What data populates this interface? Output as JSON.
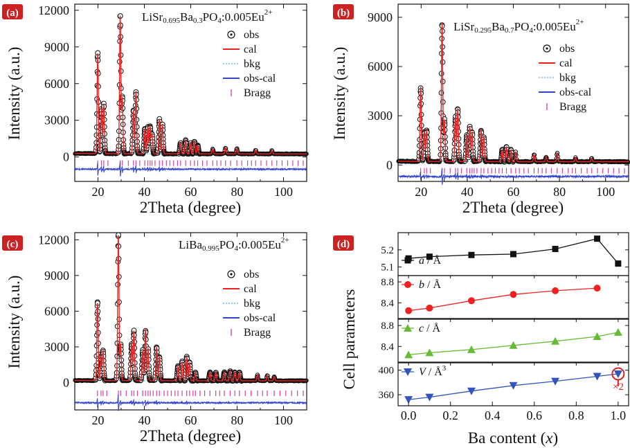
{
  "colors": {
    "obs": "#111111",
    "cal": "#ee2222",
    "bkg": "#55aaee",
    "diff": "#3344cc",
    "bragg": "#cc44aa",
    "badge": "#cc2222",
    "series_a": "#111111",
    "series_b": "#ee2222",
    "series_c": "#66bb33",
    "series_V": "#3355bb",
    "marker_highlight": "#dd2222"
  },
  "chart_data": [
    {
      "panel": "(a)",
      "type": "line",
      "formula": [
        {
          "t": "LiSr",
          "s": "base"
        },
        {
          "t": "0.695",
          "s": "sub"
        },
        {
          "t": "Ba",
          "s": "base"
        },
        {
          "t": "0.3",
          "s": "sub"
        },
        {
          "t": "PO",
          "s": "base"
        },
        {
          "t": "4",
          "s": "sub"
        },
        {
          "t": ":0.005Eu",
          "s": "base"
        },
        {
          "t": "2+",
          "s": "sup"
        }
      ],
      "xlabel": "2Theta (degree)",
      "ylabel": "Intensity (a.u.)",
      "xlim": [
        10,
        110
      ],
      "ylim": [
        -2000,
        12500
      ],
      "xticks": [
        "20",
        "40",
        "60",
        "80",
        "100"
      ],
      "yticks": [
        "0",
        "3000",
        "6000",
        "9000",
        "12000"
      ],
      "legend": [
        "obs",
        "cal",
        "bkg",
        "obs-cal",
        "Bragg"
      ],
      "background": 250,
      "diff_offset": -1000,
      "bragg_level": -500,
      "peaks": [
        [
          19.9,
          8200
        ],
        [
          21.5,
          3600
        ],
        [
          22.5,
          4000
        ],
        [
          29.6,
          11200
        ],
        [
          30.5,
          4500
        ],
        [
          35.3,
          3500
        ],
        [
          36.4,
          5100
        ],
        [
          40.2,
          2000
        ],
        [
          41.5,
          2200
        ],
        [
          42.5,
          2200
        ],
        [
          43.3,
          1600
        ],
        [
          46.5,
          2800
        ],
        [
          47.8,
          2400
        ],
        [
          55.6,
          900
        ],
        [
          57.8,
          1100
        ],
        [
          59.9,
          900
        ],
        [
          61.6,
          1000
        ],
        [
          63.0,
          700
        ],
        [
          69.5,
          400
        ],
        [
          75.0,
          500
        ],
        [
          79.9,
          450
        ],
        [
          88.0,
          300
        ],
        [
          95.0,
          250
        ]
      ],
      "bragg_positions": [
        19.9,
        21.5,
        22.5,
        24.3,
        29.6,
        30.5,
        33.1,
        35.3,
        36.4,
        38.0,
        40.2,
        41.5,
        42.5,
        43.3,
        44.6,
        46.5,
        47.8,
        49.5,
        51.0,
        52.6,
        54.3,
        55.6,
        57.8,
        59.9,
        61.6,
        63.0,
        65.1,
        67.0,
        69.5,
        71.3,
        73.0,
        75.0,
        77.2,
        79.9,
        82.0,
        84.5,
        86.2,
        88.0,
        90.3,
        92.7,
        95.0,
        97.1,
        99.4,
        101.8,
        104.0,
        106.3,
        108.5
      ]
    },
    {
      "panel": "(b)",
      "type": "line",
      "formula": [
        {
          "t": "LiSr",
          "s": "base"
        },
        {
          "t": "0.295",
          "s": "sub"
        },
        {
          "t": "Ba",
          "s": "base"
        },
        {
          "t": "0.7",
          "s": "sub"
        },
        {
          "t": "PO",
          "s": "base"
        },
        {
          "t": "4",
          "s": "sub"
        },
        {
          "t": ":0.005Eu",
          "s": "base"
        },
        {
          "t": "2+",
          "s": "sup"
        }
      ],
      "xlabel": "2Theta (degree)",
      "ylabel": "Intensity (a.u.)",
      "xlim": [
        10,
        110
      ],
      "ylim": [
        -1000,
        9800
      ],
      "xticks": [
        "20",
        "40",
        "60",
        "80",
        "100"
      ],
      "yticks": [
        "0",
        "3000",
        "6000",
        "9000"
      ],
      "legend": [
        "obs",
        "cal",
        "bkg",
        "obs-cal",
        "Bragg"
      ],
      "background": 200,
      "diff_offset": -700,
      "bragg_level": -350,
      "peaks": [
        [
          19.8,
          4500
        ],
        [
          21.4,
          1800
        ],
        [
          22.4,
          1900
        ],
        [
          29.1,
          8400
        ],
        [
          30.1,
          2500
        ],
        [
          34.9,
          2700
        ],
        [
          35.9,
          3200
        ],
        [
          39.8,
          1600
        ],
        [
          41.1,
          2100
        ],
        [
          42.1,
          1800
        ],
        [
          46.0,
          1900
        ],
        [
          47.2,
          1500
        ],
        [
          55.2,
          700
        ],
        [
          57.0,
          900
        ],
        [
          59.0,
          700
        ],
        [
          61.0,
          600
        ],
        [
          69.0,
          450
        ],
        [
          74.2,
          300
        ],
        [
          79.0,
          500
        ],
        [
          87.0,
          250
        ],
        [
          94.0,
          200
        ]
      ],
      "bragg_positions": [
        19.8,
        21.4,
        22.4,
        24.0,
        29.1,
        30.1,
        32.6,
        34.9,
        35.9,
        37.5,
        39.8,
        41.1,
        42.1,
        43.0,
        44.2,
        46.0,
        47.2,
        49.0,
        50.6,
        52.2,
        53.8,
        55.2,
        57.0,
        59.0,
        61.0,
        62.6,
        64.6,
        66.5,
        69.0,
        70.8,
        72.5,
        74.2,
        76.5,
        79.0,
        81.3,
        83.8,
        85.6,
        87.0,
        89.5,
        92.0,
        94.0,
        96.5,
        98.8,
        101.2,
        103.5,
        105.8,
        108.2
      ]
    },
    {
      "panel": "(c)",
      "type": "line",
      "formula": [
        {
          "t": "LiBa",
          "s": "base"
        },
        {
          "t": "0.995",
          "s": "sub"
        },
        {
          "t": "PO",
          "s": "base"
        },
        {
          "t": "4",
          "s": "sub"
        },
        {
          "t": ":0.005Eu",
          "s": "base"
        },
        {
          "t": "2+",
          "s": "sup"
        }
      ],
      "xlabel": "2Theta (degree)",
      "ylabel": "Intensity (a.u.)",
      "xlim": [
        10,
        110
      ],
      "ylim": [
        -2300,
        12600
      ],
      "xticks": [
        "20",
        "40",
        "60",
        "80",
        "100"
      ],
      "yticks": [
        "0",
        "3000",
        "6000",
        "9000",
        "12000"
      ],
      "legend": [
        "obs",
        "cal",
        "bkg",
        "obs-cal",
        "Bragg"
      ],
      "background": 150,
      "diff_offset": -1700,
      "bragg_level": -900,
      "peaks": [
        [
          19.8,
          6500
        ],
        [
          21.3,
          2000
        ],
        [
          22.2,
          2500
        ],
        [
          28.8,
          12200
        ],
        [
          29.8,
          3000
        ],
        [
          34.5,
          3000
        ],
        [
          35.5,
          4200
        ],
        [
          39.3,
          2500
        ],
        [
          40.5,
          4300
        ],
        [
          41.6,
          2700
        ],
        [
          45.3,
          2800
        ],
        [
          46.5,
          2000
        ],
        [
          54.5,
          1200
        ],
        [
          56.3,
          1600
        ],
        [
          58.3,
          2000
        ],
        [
          59.5,
          1500
        ],
        [
          62.0,
          700
        ],
        [
          68.3,
          700
        ],
        [
          70.8,
          700
        ],
        [
          74.5,
          700
        ],
        [
          77.0,
          800
        ],
        [
          79.0,
          700
        ],
        [
          81.0,
          700
        ],
        [
          88.8,
          500
        ],
        [
          93.0,
          450
        ],
        [
          96.0,
          350
        ]
      ],
      "bragg_positions": [
        19.8,
        21.3,
        22.2,
        23.8,
        28.8,
        29.8,
        32.2,
        34.5,
        35.5,
        37.0,
        39.3,
        40.5,
        41.6,
        42.6,
        43.8,
        45.3,
        46.5,
        48.5,
        50.0,
        51.6,
        53.2,
        54.5,
        56.3,
        58.3,
        59.5,
        61.0,
        62.0,
        64.0,
        66.0,
        68.3,
        70.8,
        72.5,
        74.5,
        77.0,
        79.0,
        81.0,
        83.5,
        86.0,
        88.8,
        91.0,
        93.0,
        96.0,
        98.5,
        101.0,
        103.5,
        106.0,
        108.5
      ]
    },
    {
      "panel": "(d)",
      "type": "line",
      "ylabel": "Cell parameters",
      "xlabel_parts": [
        {
          "t": "Ba content (",
          "i": false
        },
        {
          "t": "x",
          "i": true
        },
        {
          "t": ")",
          "i": false
        }
      ],
      "xlim": [
        -0.05,
        1.05
      ],
      "xticks": [
        "0.0",
        "0.2",
        "0.4",
        "0.6",
        "0.8",
        "1.0"
      ],
      "x": [
        0.0,
        0.1,
        0.3,
        0.5,
        0.7,
        0.9,
        1.0
      ],
      "subplots": [
        {
          "name": "a",
          "unit": " / Å",
          "marker": "square",
          "ylim": [
            5.05,
            5.3
          ],
          "yticks": [
            "5.1",
            "5.2"
          ],
          "values": [
            5.15,
            5.16,
            5.17,
            5.175,
            5.205,
            5.265,
            5.12
          ]
        },
        {
          "name": "b",
          "unit": " / Å",
          "marker": "circle",
          "ylim": [
            8.1,
            8.92
          ],
          "yticks": [
            "8.4",
            "8.8"
          ],
          "values": [
            8.25,
            8.3,
            8.44,
            8.56,
            8.63,
            8.68,
            null
          ]
        },
        {
          "name": "c",
          "unit": " / Å",
          "marker": "triangle-up",
          "ylim": [
            8.1,
            8.92
          ],
          "yticks": [
            "8.4",
            "8.8"
          ],
          "values": [
            8.24,
            8.28,
            8.34,
            8.42,
            8.5,
            8.59,
            8.67
          ]
        },
        {
          "name": "V",
          "unit": " / Å",
          "unit_sup": "3",
          "marker": "triangle-down",
          "ylim": [
            342,
            412
          ],
          "yticks": [
            "360",
            "400"
          ],
          "values": [
            352,
            356,
            366,
            375,
            382,
            390,
            394
          ]
        }
      ],
      "annotation": "×2"
    }
  ]
}
